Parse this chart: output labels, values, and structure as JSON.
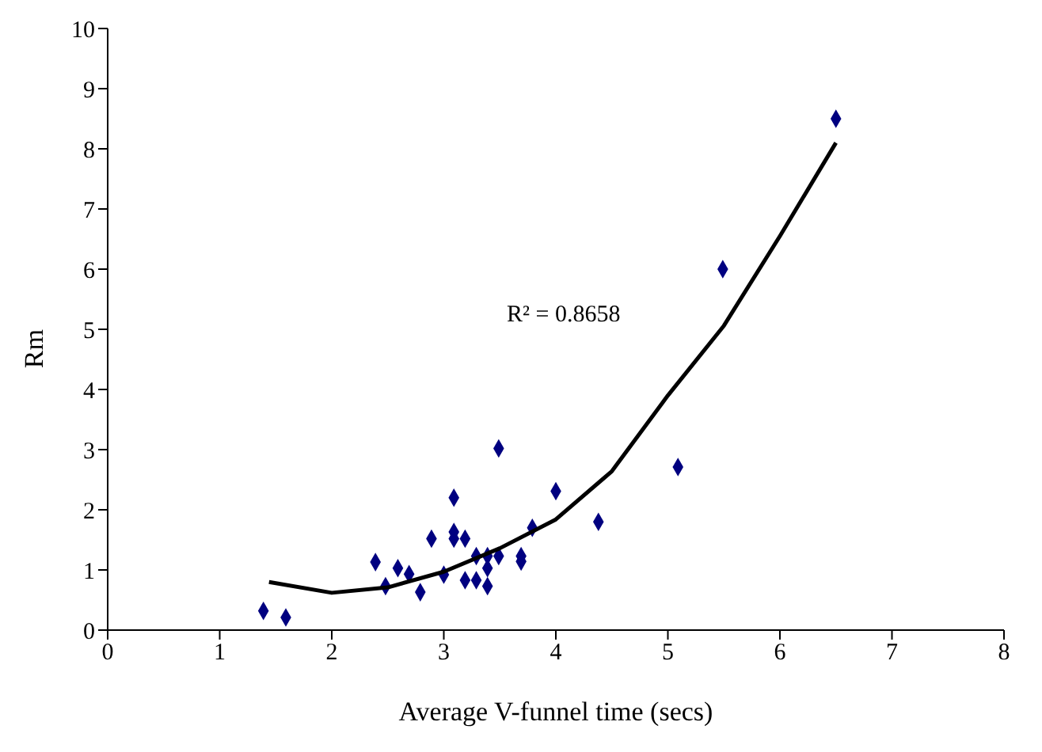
{
  "chart_data": {
    "type": "scatter",
    "xlabel": "Average V-funnel time (secs)",
    "ylabel": "Rm",
    "xlim": [
      0,
      8
    ],
    "xticks": [
      0,
      1,
      2,
      3,
      4,
      5,
      6,
      7,
      8
    ],
    "ylim": [
      0,
      10
    ],
    "yticks": [
      0,
      1,
      2,
      3,
      4,
      5,
      6,
      7,
      8,
      9,
      10
    ],
    "grid": false,
    "legend": false,
    "marker": "diamond",
    "annotations": [
      "R² = 0.8658"
    ],
    "series": [
      {
        "color": "#000080",
        "x": [
          1.39,
          1.59,
          2.39,
          2.48,
          2.59,
          2.69,
          2.79,
          2.89,
          3.0,
          3.09,
          3.09,
          3.09,
          3.19,
          3.19,
          3.29,
          3.29,
          3.39,
          3.39,
          3.39,
          3.49,
          3.49,
          3.69,
          3.69,
          3.79,
          4.0,
          4.38,
          5.09,
          5.49,
          6.5
        ],
        "values": [
          0.32,
          0.21,
          1.13,
          0.73,
          1.03,
          0.93,
          0.63,
          1.52,
          0.92,
          2.2,
          1.63,
          1.52,
          1.52,
          0.83,
          0.83,
          1.23,
          1.23,
          1.03,
          0.73,
          3.02,
          1.23,
          1.23,
          1.14,
          1.7,
          2.31,
          1.8,
          2.71,
          6.0,
          8.5
        ]
      },
      {
        "type": "line",
        "color": "#000000",
        "marker": "none",
        "x": [
          1.44,
          2.0,
          2.5,
          3.0,
          3.5,
          4.0,
          4.5,
          5.0,
          5.5,
          6.0,
          6.5
        ],
        "values": [
          0.8,
          0.62,
          0.71,
          0.97,
          1.36,
          1.84,
          2.64,
          3.9,
          5.06,
          6.55,
          8.1
        ]
      }
    ]
  }
}
